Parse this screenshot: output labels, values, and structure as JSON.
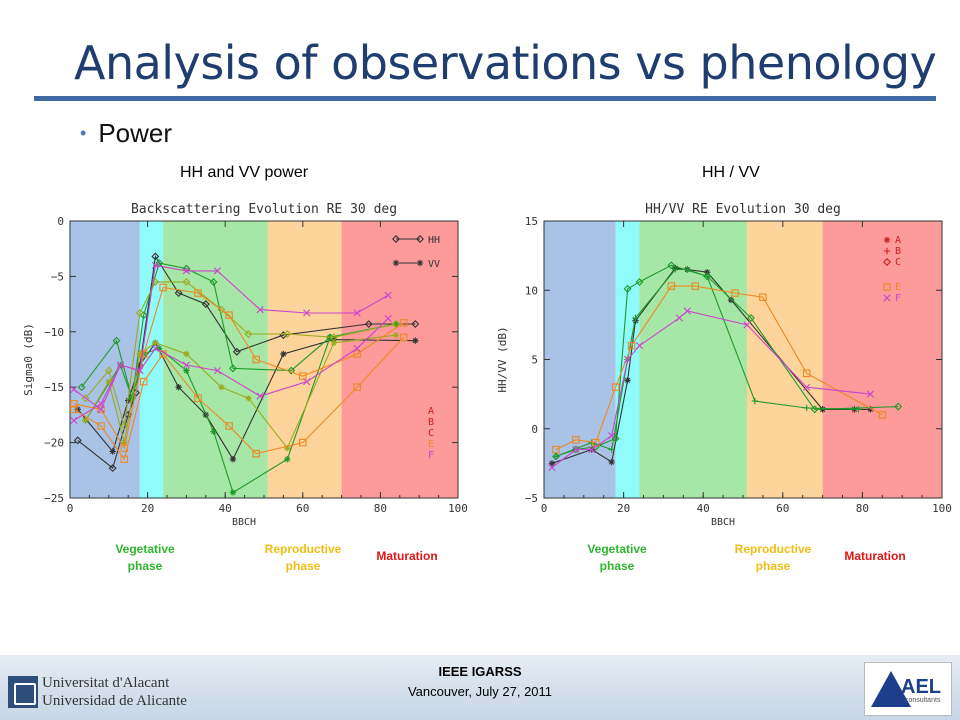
{
  "slide": {
    "title": "Analysis of observations vs phenology",
    "bullet": "Power",
    "left_subtitle": "HH and VV power",
    "right_subtitle": "HH / VV"
  },
  "phases": {
    "vegetative": "Vegetative\nphase",
    "reproductive": "Reproductive\nphase",
    "maturation": "Maturation",
    "colors": {
      "vegetative": "#2fb52f",
      "reproductive": "#f2bd12",
      "maturation": "#e01515"
    }
  },
  "footer": {
    "conference": "IEEE IGARSS",
    "location_date": "Vancouver, July 27, 2011",
    "university_line1": "Universitat d'Alacant",
    "university_line2": "Universidad de Alicante",
    "company_logo_text": "AEL",
    "company_logo_sub": "consultants"
  },
  "chart_data": [
    {
      "type": "line",
      "title": "Backscattering Evolution RE 30 deg",
      "xlabel": "BBCH",
      "ylabel": "Sigma0 (dB)",
      "xlim": [
        0,
        100
      ],
      "ylim": [
        -25,
        0
      ],
      "xticks": [
        0,
        20,
        40,
        60,
        80,
        100
      ],
      "yticks": [
        0,
        -5,
        -10,
        -15,
        -20,
        -25
      ],
      "ytick_labels": [
        "0",
        "−5",
        "−10",
        "−15",
        "−20",
        "−25"
      ],
      "phase_bands": [
        {
          "from": 0,
          "to": 18,
          "color": "#a8c3e6"
        },
        {
          "from": 18,
          "to": 24,
          "color": "#8ffbfb"
        },
        {
          "from": 24,
          "to": 51,
          "color": "#a6e6a6"
        },
        {
          "from": 51,
          "to": 70,
          "color": "#fdd59c"
        },
        {
          "from": 70,
          "to": 100,
          "color": "#fd9a9a"
        }
      ],
      "legend": {
        "position": "top-right",
        "pol_entries": [
          {
            "label": "HH",
            "marker": "diamond"
          },
          {
            "label": "VV",
            "marker": "star"
          }
        ],
        "field_entries": [
          {
            "label": "A",
            "color": "#cc2020"
          },
          {
            "label": "B",
            "color": "#cc2020"
          },
          {
            "label": "C",
            "color": "#cc2020"
          },
          {
            "label": "E",
            "color": "#ee8822"
          },
          {
            "label": "F",
            "color": "#cc44cc"
          }
        ]
      },
      "series": [
        {
          "field": "A",
          "pol": "HH",
          "color": "#333333",
          "marker": "diamond",
          "x": [
            2,
            11,
            15,
            17,
            22,
            28,
            35,
            43,
            55,
            77,
            89
          ],
          "y": [
            -19.8,
            -22.3,
            -17.5,
            -15.5,
            -3.2,
            -6.5,
            -7.5,
            -11.8,
            -10.3,
            -9.3,
            -9.3
          ]
        },
        {
          "field": "A",
          "pol": "VV",
          "color": "#333333",
          "marker": "star",
          "x": [
            2,
            11,
            15,
            18,
            22,
            28,
            35,
            42,
            55,
            68,
            89
          ],
          "y": [
            -17.0,
            -20.8,
            -16.2,
            -13.0,
            -11.0,
            -15.0,
            -17.5,
            -21.5,
            -12.0,
            -10.7,
            -10.8
          ]
        },
        {
          "field": "B",
          "pol": "HH",
          "color": "#1e9a2a",
          "marker": "diamond",
          "x": [
            3,
            12,
            16,
            19,
            23,
            30,
            37,
            42,
            57,
            67,
            84
          ],
          "y": [
            -15.0,
            -10.8,
            -16.0,
            -8.5,
            -3.8,
            -4.3,
            -5.5,
            -13.3,
            -13.5,
            -10.5,
            -9.3
          ]
        },
        {
          "field": "B",
          "pol": "VV",
          "color": "#1e9a2a",
          "marker": "star",
          "x": [
            4,
            13,
            16,
            19,
            23,
            30,
            37,
            42,
            56,
            67,
            84
          ],
          "y": [
            -18.0,
            -13.0,
            -16.0,
            -12.0,
            -11.5,
            -13.5,
            -19.0,
            -24.5,
            -21.5,
            -10.5,
            -9.3
          ]
        },
        {
          "field": "C",
          "pol": "HH",
          "color": "#9aaa1e",
          "marker": "diamond",
          "x": [
            4,
            10,
            14,
            18,
            22,
            30,
            39,
            46,
            56,
            68,
            84
          ],
          "y": [
            -16.0,
            -13.5,
            -18.5,
            -8.3,
            -5.5,
            -5.5,
            -8.0,
            -10.2,
            -10.2,
            -10.5,
            -9.3
          ]
        },
        {
          "field": "C",
          "pol": "VV",
          "color": "#9aaa1e",
          "marker": "star",
          "x": [
            4,
            10,
            14,
            18,
            22,
            30,
            39,
            46,
            56,
            68,
            84
          ],
          "y": [
            -18.0,
            -14.5,
            -20.0,
            -12.0,
            -11.0,
            -12.0,
            -15.0,
            -16.0,
            -20.5,
            -11.0,
            -10.3
          ]
        },
        {
          "field": "E",
          "pol": "HH",
          "color": "#ee8822",
          "marker": "square",
          "x": [
            1,
            8,
            14,
            19,
            24,
            33,
            41,
            48,
            60,
            74,
            86
          ],
          "y": [
            -16.5,
            -17.0,
            -20.5,
            -12.0,
            -6.0,
            -6.5,
            -8.5,
            -12.5,
            -14.0,
            -12.0,
            -9.2
          ]
        },
        {
          "field": "E",
          "pol": "VV",
          "color": "#ee8822",
          "marker": "square",
          "x": [
            1,
            8,
            14,
            19,
            24,
            33,
            41,
            48,
            60,
            74,
            86
          ],
          "y": [
            -17.0,
            -18.5,
            -21.5,
            -14.5,
            -12.0,
            -16.0,
            -18.5,
            -21.0,
            -20.0,
            -15.0,
            -10.5
          ]
        },
        {
          "field": "F",
          "pol": "HH",
          "color": "#cc44cc",
          "marker": "cross",
          "x": [
            1,
            8,
            13,
            18,
            22,
            30,
            38,
            49,
            61,
            74,
            82
          ],
          "y": [
            -15.2,
            -17.0,
            -13.0,
            -13.5,
            -4.0,
            -4.5,
            -4.5,
            -8.0,
            -8.3,
            -8.3,
            -6.7
          ]
        },
        {
          "field": "F",
          "pol": "VV",
          "color": "#cc44cc",
          "marker": "cross",
          "x": [
            1,
            8,
            13,
            18,
            22,
            30,
            38,
            49,
            61,
            74,
            82
          ],
          "y": [
            -18.0,
            -16.5,
            -13.0,
            -13.5,
            -11.5,
            -13.0,
            -13.5,
            -15.8,
            -14.5,
            -11.5,
            -8.8
          ]
        }
      ]
    },
    {
      "type": "line",
      "title": "HH/VV RE Evolution 30 deg",
      "xlabel": "BBCH",
      "ylabel": "HH/VV (dB)",
      "xlim": [
        0,
        100
      ],
      "ylim": [
        -5,
        15
      ],
      "xticks": [
        0,
        20,
        40,
        60,
        80,
        100
      ],
      "yticks": [
        15,
        10,
        5,
        0,
        -5
      ],
      "ytick_labels": [
        "15",
        "10",
        "5",
        "0",
        "−5"
      ],
      "phase_bands": [
        {
          "from": 0,
          "to": 18,
          "color": "#a8c3e6"
        },
        {
          "from": 18,
          "to": 24,
          "color": "#8ffbfb"
        },
        {
          "from": 24,
          "to": 51,
          "color": "#a6e6a6"
        },
        {
          "from": 51,
          "to": 70,
          "color": "#fdd59c"
        },
        {
          "from": 70,
          "to": 100,
          "color": "#fd9a9a"
        }
      ],
      "legend": {
        "position": "top-right",
        "entries": [
          {
            "label": "A",
            "marker": "star",
            "color": "#cc2020"
          },
          {
            "label": "B",
            "marker": "plus",
            "color": "#cc2020"
          },
          {
            "label": "C",
            "marker": "diamond",
            "color": "#cc2020"
          },
          {
            "label": "E",
            "marker": "square",
            "color": "#ee8822"
          },
          {
            "label": "F",
            "marker": "cross",
            "color": "#cc44cc"
          }
        ]
      },
      "series": [
        {
          "field": "A",
          "color": "#333333",
          "marker": "star",
          "x": [
            2,
            12,
            17,
            21,
            23,
            33,
            36,
            41,
            47,
            70
          ],
          "y": [
            -2.5,
            -1.5,
            -2.4,
            3.5,
            7.8,
            11.6,
            11.5,
            11.3,
            9.3,
            1.4
          ]
        },
        {
          "field": "A",
          "color": "#333333",
          "marker": "star",
          "x": [
            70,
            78,
            82
          ],
          "y": [
            1.4,
            1.4,
            1.4
          ]
        },
        {
          "field": "B",
          "color": "#1e9a2a",
          "marker": "plus",
          "x": [
            3,
            12,
            17,
            21,
            23,
            33,
            36,
            41,
            53,
            66,
            79
          ],
          "y": [
            -2.0,
            -1.0,
            -1.5,
            5.0,
            8.0,
            11.5,
            11.5,
            11.0,
            2.0,
            1.5,
            1.4
          ]
        },
        {
          "field": "C",
          "color": "#1e9a2a",
          "marker": "diamond",
          "x": [
            3,
            8,
            13,
            18,
            21,
            24,
            32,
            41,
            52,
            68,
            89
          ],
          "y": [
            -2.0,
            -1.5,
            -1.3,
            -0.7,
            10.1,
            10.6,
            11.8,
            11.0,
            8.0,
            1.4,
            1.6
          ]
        },
        {
          "field": "E",
          "color": "#ee8822",
          "marker": "square",
          "x": [
            3,
            8,
            13,
            18,
            22,
            32,
            38,
            48,
            55,
            66,
            85
          ],
          "y": [
            -1.5,
            -0.8,
            -1.0,
            3.0,
            6.0,
            10.3,
            10.3,
            9.8,
            9.5,
            4.0,
            1.0
          ]
        },
        {
          "field": "F",
          "color": "#cc44cc",
          "marker": "cross",
          "x": [
            2,
            8,
            12,
            17,
            21,
            24,
            34,
            36,
            51,
            66,
            82
          ],
          "y": [
            -2.8,
            -1.5,
            -1.5,
            -0.5,
            5.0,
            6.0,
            8.0,
            8.5,
            7.5,
            3.0,
            2.5
          ]
        }
      ]
    }
  ]
}
